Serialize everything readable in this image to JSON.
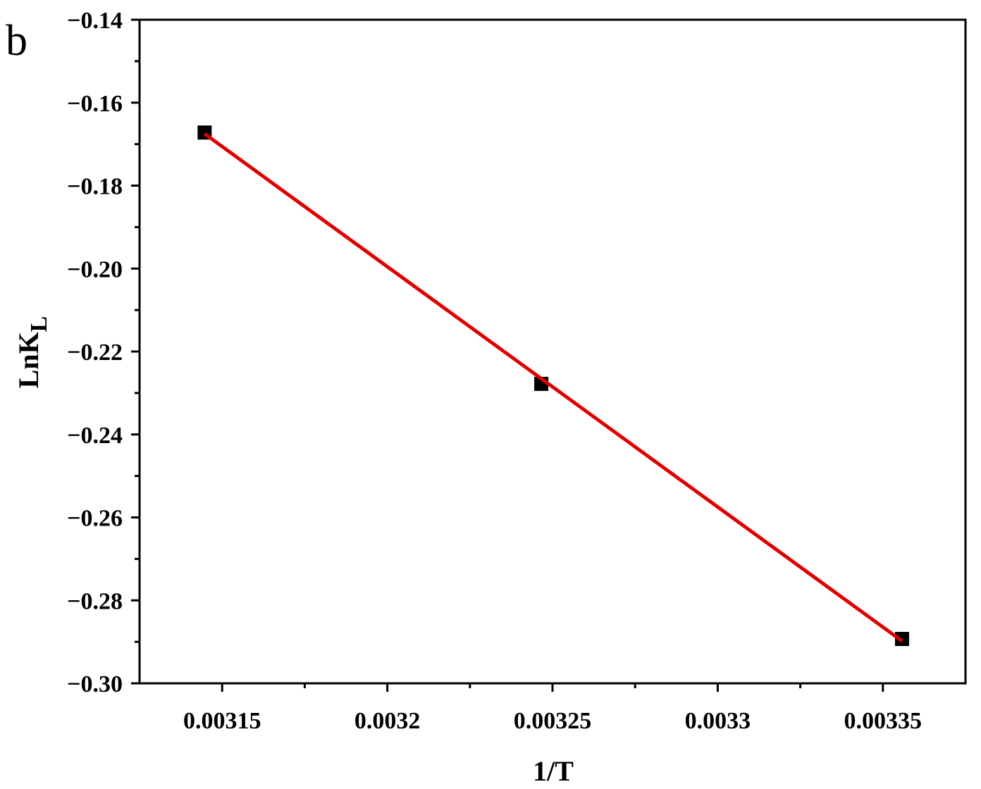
{
  "chart_data": {
    "type": "scatter",
    "panel_label": "b",
    "x_label": "1/T",
    "y_label": "LnK",
    "y_label_subscript": "L",
    "series": [
      {
        "x": [
          0.0031447,
          0.0032466,
          0.0033558
        ],
        "values": [
          -0.1672,
          -0.2278,
          -0.2893
        ],
        "color": "#000000"
      }
    ],
    "fit": {
      "x": [
        0.0031447,
        0.0033558
      ],
      "values": [
        -0.1675,
        -0.2898
      ],
      "color": "#e00000"
    },
    "xlim": [
      0.003125,
      0.003375
    ],
    "ylim": [
      -0.3,
      -0.14
    ],
    "xticks": [
      0.00315,
      0.0032,
      0.00325,
      0.0033,
      0.00335
    ],
    "xtick_labels_override": null,
    "yticks": [
      {
        "value": -0.3,
        "label": "−0.30"
      },
      {
        "value": -0.28,
        "label": "−0.28"
      },
      {
        "value": -0.26,
        "label": "−0.26"
      },
      {
        "value": -0.24,
        "label": "−0.24"
      },
      {
        "value": -0.22,
        "label": "−0.22"
      },
      {
        "value": -0.2,
        "label": "−0.20"
      },
      {
        "value": -0.18,
        "label": "−0.18"
      },
      {
        "value": -0.16,
        "label": "−0.16"
      },
      {
        "value": -0.14,
        "label": "−0.14"
      }
    ]
  }
}
